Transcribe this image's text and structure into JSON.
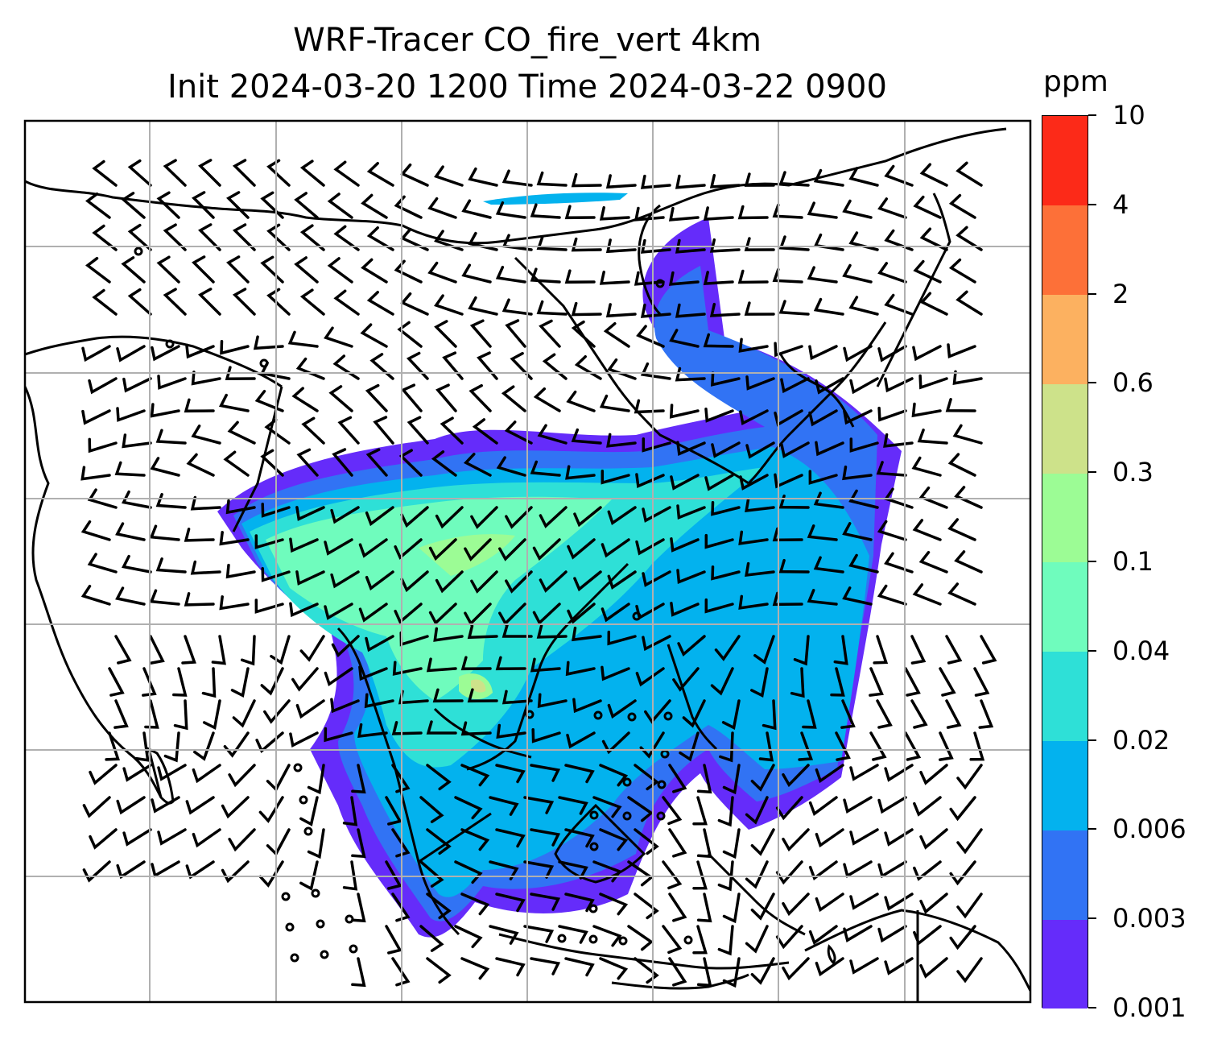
{
  "title": {
    "line1": "WRF-Tracer CO_fire_vert 4km",
    "line2": "Init 2024-03-20 1200 Time 2024-03-22 0900"
  },
  "colorbar": {
    "unit": "ppm",
    "labels": [
      "0.001",
      "0.003",
      "0.006",
      "0.02",
      "0.04",
      "0.1",
      "0.3",
      "0.6",
      "2",
      "4",
      "10"
    ],
    "colors": [
      "#652cfa",
      "#3173f4",
      "#03b2ee",
      "#2ee0d7",
      "#6ffcbd",
      "#9cfc95",
      "#cde28a",
      "#fcb160",
      "#fd7038",
      "#fc2a18"
    ]
  },
  "map": {
    "gridlines": true,
    "land_style": "coastline and national borders",
    "overlay": "wind barbs"
  }
}
